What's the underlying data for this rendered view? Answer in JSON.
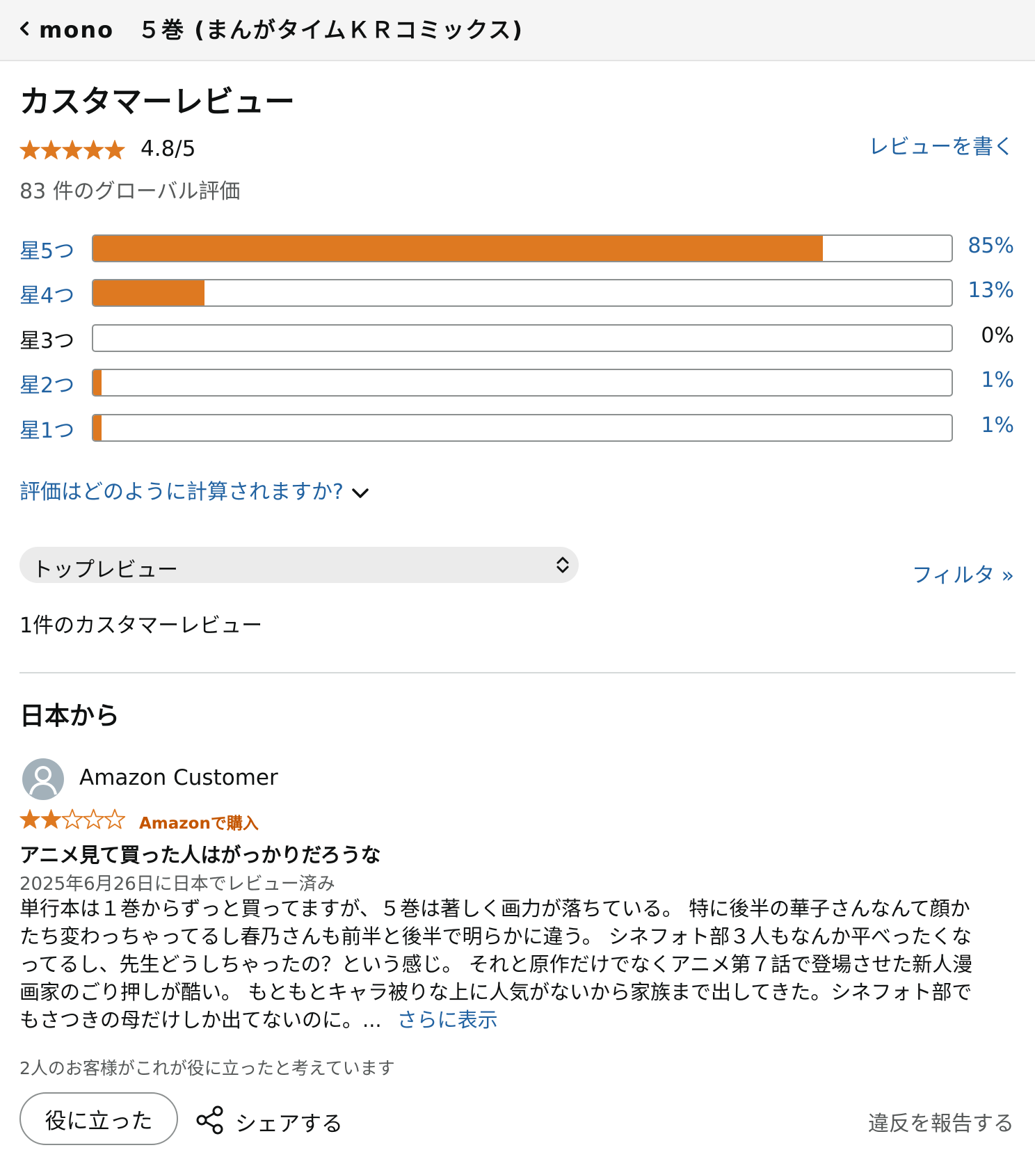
{
  "header": {
    "title": "mono　５巻 (まんがタイムＫＲコミックス)"
  },
  "reviews_section": {
    "title": "カスタマーレビュー",
    "average_rating": 4.8,
    "average_text": "4.8/5",
    "write_review_label": "レビューを書く",
    "global_ratings_text": "83 件のグローバル評価",
    "histogram": [
      {
        "label": "星5つ",
        "percent_text": "85%",
        "percent": 85,
        "is_link": true
      },
      {
        "label": "星4つ",
        "percent_text": "13%",
        "percent": 13,
        "is_link": true
      },
      {
        "label": "星3つ",
        "percent_text": "0%",
        "percent": 0,
        "is_link": false
      },
      {
        "label": "星2つ",
        "percent_text": "1%",
        "percent": 1,
        "is_link": true
      },
      {
        "label": "星1つ",
        "percent_text": "1%",
        "percent": 1,
        "is_link": true
      }
    ],
    "calculation_link": "評価はどのように計算されますか?",
    "sort_selected": "トップレビュー",
    "filter_label": "フィルタ »",
    "review_count_text": "1件のカスタマーレビュー",
    "region_title": "日本から"
  },
  "review": {
    "reviewer_name": "Amazon Customer",
    "rating": 2,
    "verified_label": "Amazonで購入",
    "title": "アニメ見て買った人はがっかりだろうな",
    "date_text": "2025年6月26日に日本でレビュー済み",
    "body_lines": [
      "単行本は１巻からずっと買ってますが、５巻は著しく画力が落ちている。 特に後半の華子さんなんて顔か",
      "たち変わっちゃってるし春乃さんも前半と後半で明らかに違う。 シネフォト部３人もなんか平べったくな",
      "ってるし、先生どうしちゃったの？という感じ。 それと原作だけでなくアニメ第７話で登場させた新人漫",
      "画家のごり押しが酷い。 もともとキャラ被りな上に人気がないから家族まで出してきた。シネフォト部で",
      "もさつきの母だけしか出てないのに。..."
    ],
    "more_label": "さらに表示",
    "helpful_count_text": "2人のお客様がこれが役に立ったと考えています",
    "helpful_button_label": "役に立った",
    "share_label": "シェアする",
    "report_label": "違反を報告する"
  },
  "colors": {
    "star": "#de7921",
    "link": "#2162a1",
    "verified": "#c45500",
    "bar_fill": "#de7921"
  },
  "icons": [
    "chevron-left-icon",
    "star-icon",
    "chevron-down-icon",
    "sort-updown-icon",
    "avatar-person-icon",
    "share-icon"
  ]
}
